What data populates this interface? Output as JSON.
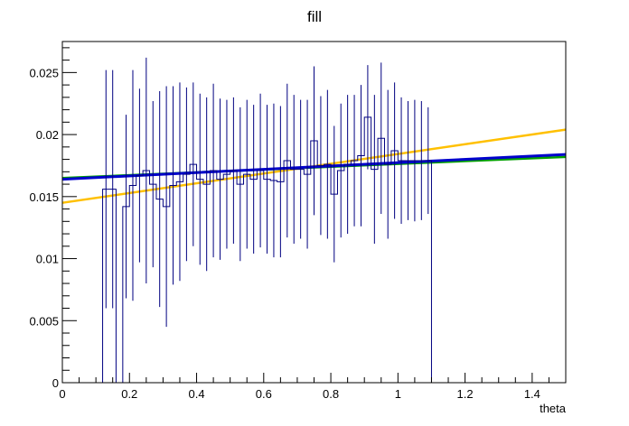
{
  "chart_data": {
    "type": "line",
    "title": "fill",
    "xlabel": "theta",
    "ylabel": "",
    "xlim": [
      0,
      1.5
    ],
    "ylim": [
      0,
      0.0275
    ],
    "x_ticks": [
      0,
      0.2,
      0.4,
      0.6,
      0.8,
      1,
      1.2,
      1.4
    ],
    "x_tick_labels": [
      "0",
      "0.2",
      "0.4",
      "0.6",
      "0.8",
      "1",
      "1.2",
      "1.4"
    ],
    "y_ticks": [
      0,
      0.005,
      0.01,
      0.015,
      0.02,
      0.025
    ],
    "y_tick_labels": [
      "0",
      "0.005",
      "0.01",
      "0.015",
      "0.02",
      "0.025"
    ],
    "grid": false,
    "legend": "none",
    "histogram": {
      "name": "fill",
      "color": "#000080",
      "bin_edges": [
        0.12,
        0.14,
        0.16,
        0.18,
        0.2,
        0.22,
        0.24,
        0.26,
        0.28,
        0.3,
        0.32,
        0.34,
        0.36,
        0.38,
        0.4,
        0.42,
        0.44,
        0.46,
        0.48,
        0.5,
        0.52,
        0.54,
        0.56,
        0.58,
        0.6,
        0.62,
        0.64,
        0.66,
        0.68,
        0.7,
        0.72,
        0.74,
        0.76,
        0.78,
        0.8,
        0.82,
        0.84,
        0.86,
        0.88,
        0.9,
        0.92,
        0.94,
        0.96,
        0.98,
        1.0,
        1.02,
        1.04,
        1.06,
        1.08,
        1.1
      ],
      "values": [
        0.0156,
        0.0156,
        0,
        0.0142,
        0.0159,
        0.0167,
        0.0171,
        0.016,
        0.0148,
        0.0142,
        0.0159,
        0.0162,
        0.0168,
        0.0176,
        0.0164,
        0.016,
        0.0171,
        0.0164,
        0.0168,
        0.0171,
        0.016,
        0.0168,
        0.0164,
        0.0171,
        0.0164,
        0.0163,
        0.0162,
        0.0179,
        0.0172,
        0.0172,
        0.0168,
        0.0195,
        0.0175,
        0.0176,
        0.0152,
        0.0171,
        0.0176,
        0.0179,
        0.0183,
        0.0214,
        0.0172,
        0.0197,
        0.0176,
        0.0187,
        0.0179,
        0.0179,
        0.0179,
        0.0179,
        0.0179
      ],
      "errors": [
        0.0096,
        0.0096,
        0,
        0.0074,
        0.0093,
        0.007,
        0.0091,
        0.0067,
        0.0087,
        0.0097,
        0.008,
        0.008,
        0.007,
        0.0066,
        0.0069,
        0.007,
        0.007,
        0.0065,
        0.006,
        0.0059,
        0.0062,
        0.006,
        0.006,
        0.0062,
        0.006,
        0.0062,
        0.0061,
        0.0062,
        0.006,
        0.0056,
        0.006,
        0.006,
        0.0056,
        0.006,
        0.0055,
        0.0054,
        0.0056,
        0.0053,
        0.0057,
        0.0042,
        0.006,
        0.0061,
        0.006,
        0.0055,
        0.0051,
        0.0048,
        0.0049,
        0.0048,
        0.0043
      ]
    },
    "series": [
      {
        "color": "#00a000",
        "x": [
          0,
          1.5
        ],
        "values": [
          0.0165,
          0.0182
        ]
      },
      {
        "color": "#ffc000",
        "x": [
          0,
          1.5
        ],
        "values": [
          0.0145,
          0.0204
        ]
      },
      {
        "color": "#0000cc",
        "x": [
          0,
          1.5
        ],
        "values": [
          0.0164,
          0.0184
        ]
      }
    ]
  }
}
